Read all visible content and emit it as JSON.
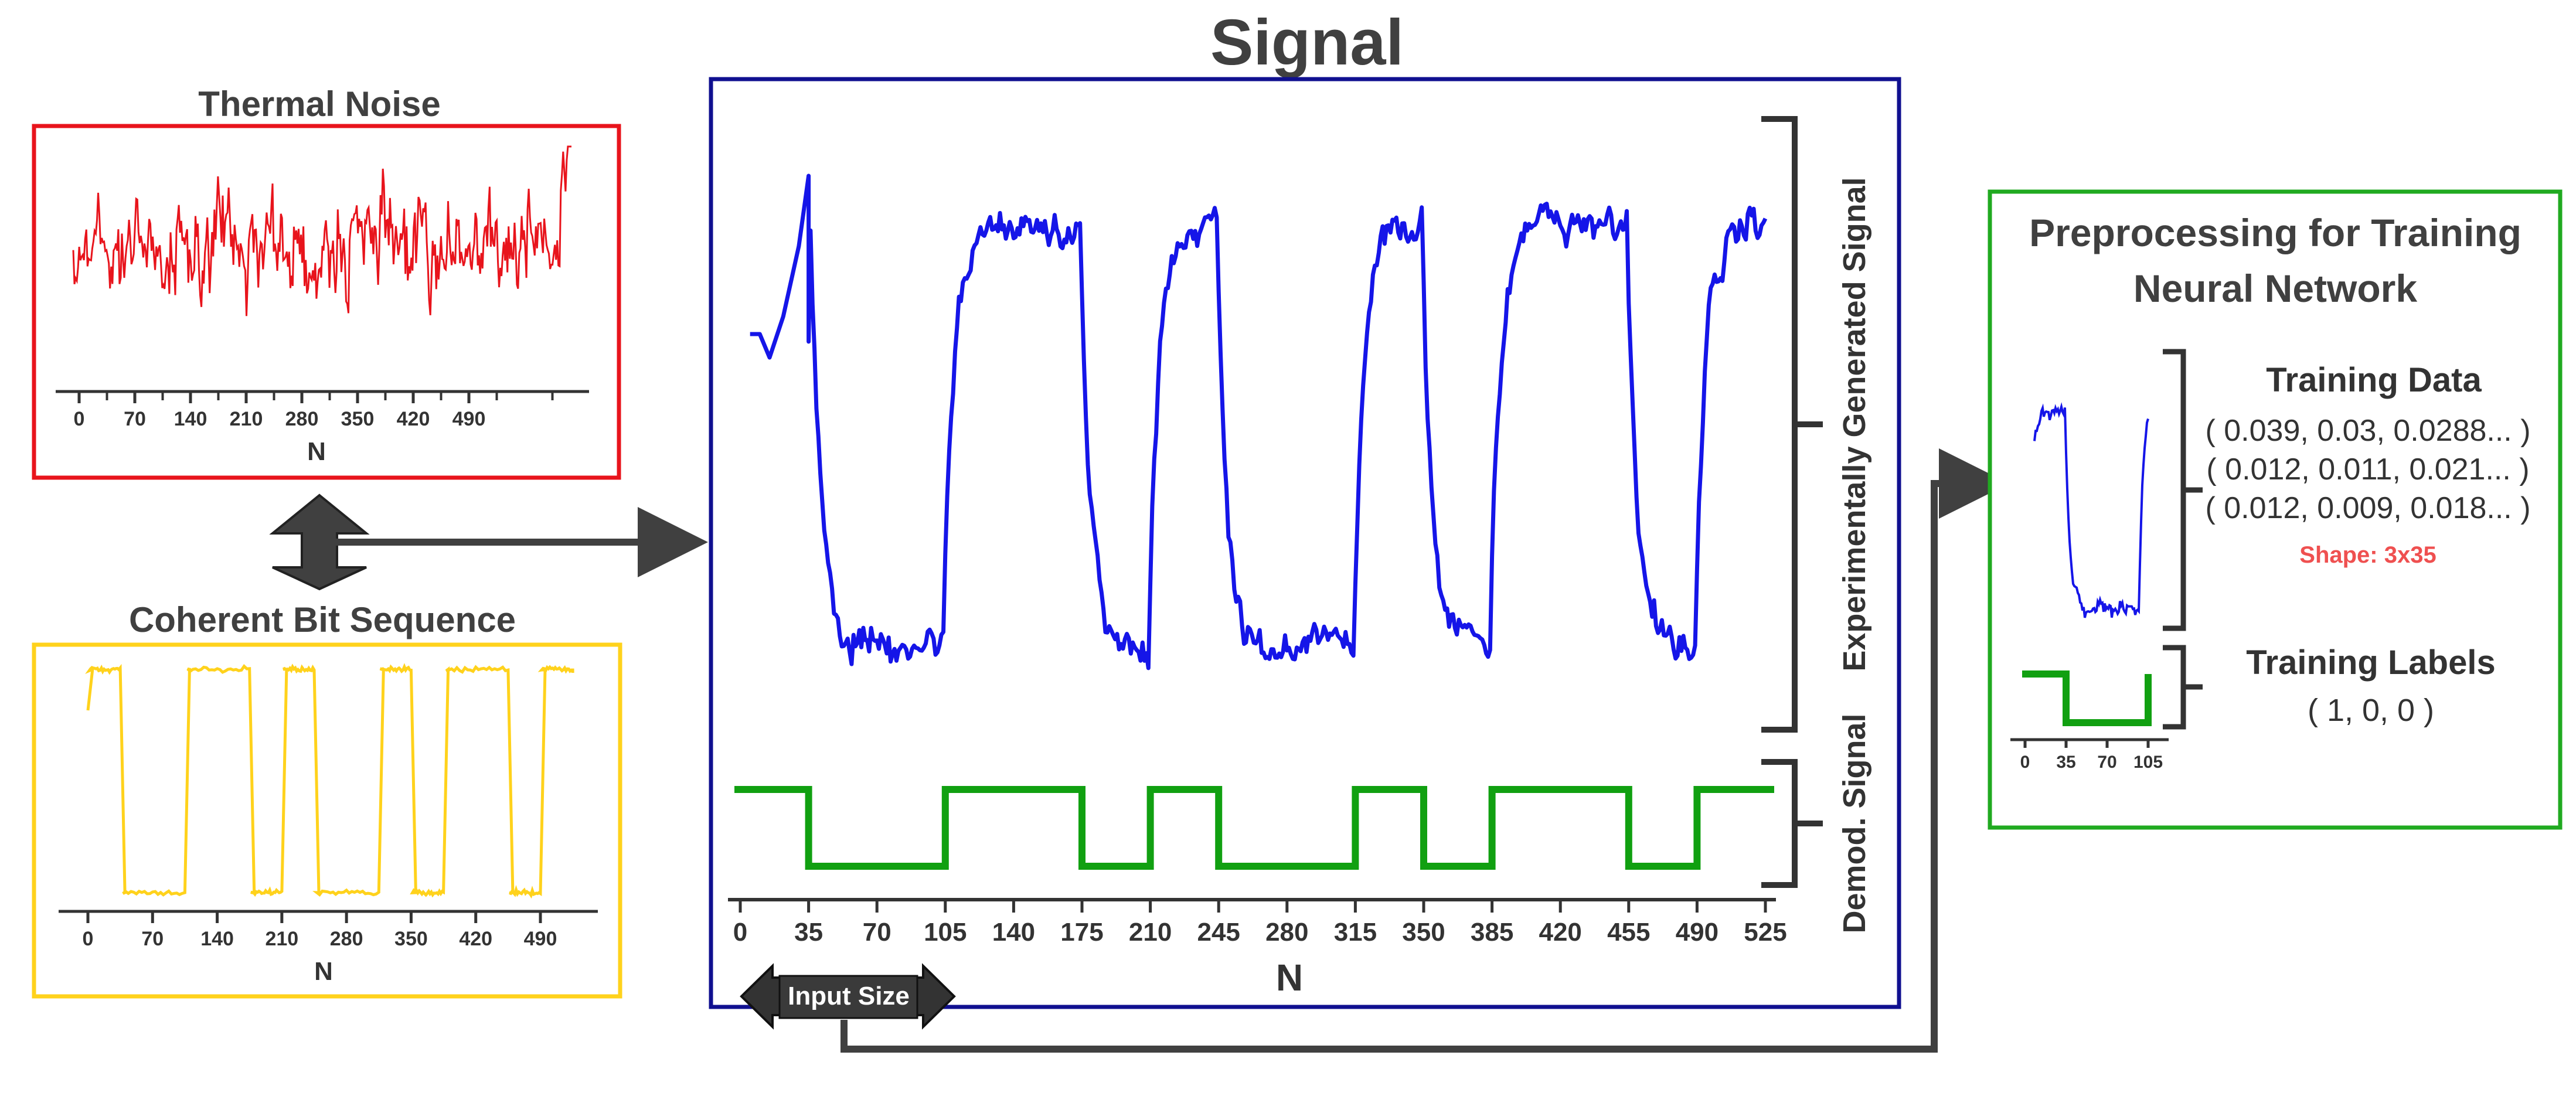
{
  "main_title": "Signal",
  "colors": {
    "noise": "#e8141c",
    "bits": "#ffd21c",
    "signal": "#1515e8",
    "demod": "#11a011",
    "main_frame": "#101090",
    "prep_frame": "#20aa20",
    "shape_text": "#ef5050",
    "dark": "#333333"
  },
  "thermal_noise": {
    "title": "Thermal Noise",
    "xlabel": "N",
    "ticks": [
      "0",
      "70",
      "140",
      "210",
      "280",
      "350",
      "420",
      "490"
    ]
  },
  "coherent_bits": {
    "title": "Coherent Bit Sequence",
    "xlabel": "N",
    "ticks": [
      "0",
      "70",
      "140",
      "210",
      "280",
      "350",
      "420",
      "490"
    ]
  },
  "signal_panel": {
    "xlabel": "N",
    "ticks": [
      "0",
      "35",
      "70",
      "105",
      "140",
      "175",
      "210",
      "245",
      "280",
      "315",
      "350",
      "385",
      "420",
      "455",
      "490",
      "525"
    ],
    "bracket_experimental": "Experimentally Generated Signal",
    "bracket_demod": "Demod. Signal",
    "input_size_label": "Input Size"
  },
  "preprocessing": {
    "title_line1": "Preprocessing for Training",
    "title_line2": "Neural Network",
    "training_data_title": "Training Data",
    "rows": [
      "( 0.039, 0.03, 0.0288... )",
      "( 0.012, 0.011, 0.021... )",
      "( 0.012, 0.009, 0.018... )"
    ],
    "shape": "Shape: 3x35",
    "labels_title": "Training Labels",
    "labels_value": "( 1, 0, 0 )",
    "ticks": [
      "0",
      "35",
      "70",
      "105"
    ]
  },
  "chart_data": [
    {
      "type": "line",
      "title": "Thermal Noise",
      "xlabel": "N",
      "xlim": [
        0,
        525
      ],
      "series": [
        {
          "values_note_free": true
        }
      ]
    },
    {
      "type": "line",
      "title": "Coherent Bit Sequence",
      "xlabel": "N",
      "xlim": [
        0,
        525
      ],
      "x": [
        0,
        35,
        105,
        175,
        210,
        245,
        315,
        350,
        385,
        455,
        490,
        525
      ],
      "series": [
        {
          "values": [
            1,
            0,
            1,
            0,
            1,
            0,
            1,
            0,
            1,
            0,
            1,
            1
          ]
        }
      ]
    },
    {
      "type": "line",
      "title": "Signal",
      "xlabel": "N",
      "xlim": [
        0,
        525
      ],
      "demod_segments": [
        {
          "x0": 0,
          "x1": 35,
          "level": 1
        },
        {
          "x0": 35,
          "x1": 105,
          "level": 0
        },
        {
          "x0": 105,
          "x1": 175,
          "level": 1
        },
        {
          "x0": 175,
          "x1": 210,
          "level": 0
        },
        {
          "x0": 210,
          "x1": 245,
          "level": 1
        },
        {
          "x0": 245,
          "x1": 315,
          "level": 0
        },
        {
          "x0": 315,
          "x1": 350,
          "level": 1
        },
        {
          "x0": 350,
          "x1": 385,
          "level": 0
        },
        {
          "x0": 385,
          "x1": 455,
          "level": 1
        },
        {
          "x0": 455,
          "x1": 490,
          "level": 0
        },
        {
          "x0": 490,
          "x1": 525,
          "level": 1
        }
      ]
    },
    {
      "type": "line",
      "title": "",
      "xlabel": "",
      "xlim": [
        0,
        105
      ],
      "labels_segments": [
        {
          "x0": 0,
          "x1": 35,
          "level": 1
        },
        {
          "x0": 35,
          "x1": 105,
          "level": 0
        }
      ]
    }
  ]
}
